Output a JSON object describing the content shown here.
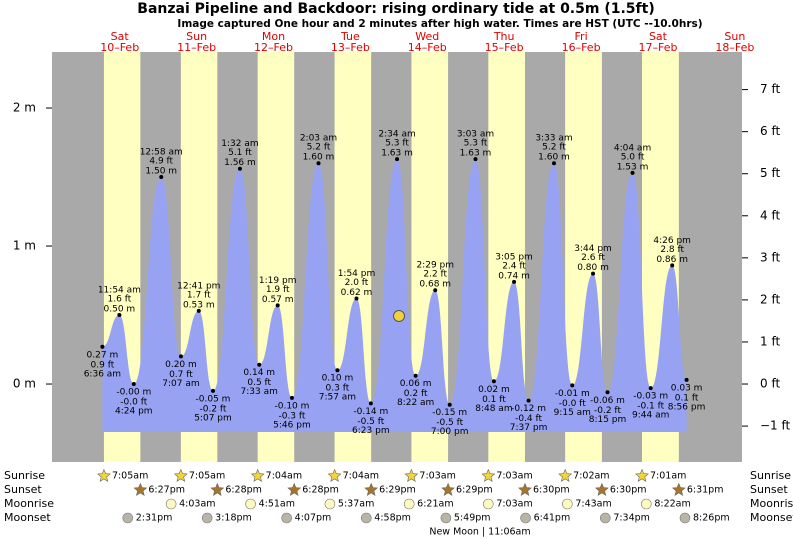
{
  "chart_data": {
    "type": "tide",
    "title": "Banzai Pipeline and Backdoor: rising  ordinary tide at 0.5m (1.5ft)",
    "subtitle": "Image captured One hour and 2 minutes after high water. Times are HST (UTC --10.0hrs)",
    "days": [
      "Sat",
      "Sun",
      "Mon",
      "Tue",
      "Wed",
      "Thu",
      "Fri",
      "Sat",
      "Sun"
    ],
    "dates": [
      "10–Feb",
      "11–Feb",
      "12–Feb",
      "13–Feb",
      "14–Feb",
      "15–Feb",
      "16–Feb",
      "17–Feb",
      "18–Feb"
    ],
    "ylim": [
      -0.565,
      2.406
    ],
    "yticks": [
      {
        "value": 0,
        "label": "0 m"
      },
      {
        "value": 1,
        "label": "1 m"
      },
      {
        "value": 2,
        "label": "2 m"
      }
    ],
    "y2lim": [
      -1.854,
      7.894
    ],
    "y2ticks": [
      {
        "value": -1,
        "label": "−1 ft"
      },
      {
        "value": 0,
        "label": "0 ft"
      },
      {
        "value": 1,
        "label": "1 ft"
      },
      {
        "value": 2,
        "label": "2 ft"
      },
      {
        "value": 3,
        "label": "3 ft"
      },
      {
        "value": 4,
        "label": "4 ft"
      },
      {
        "value": 5,
        "label": "5 ft"
      },
      {
        "value": 6,
        "label": "6 ft"
      },
      {
        "value": 7,
        "label": "7 ft"
      }
    ],
    "tides": {
      "color": "#97a3f2",
      "times": [
        "6:36 am",
        "11:54 am",
        "4:24 pm",
        "12:58 am",
        "7:07 am",
        "12:41 pm",
        "5:07 pm",
        "1:32 am",
        "7:33 am",
        "1:19 pm",
        "5:46 pm",
        "2:03 am",
        "7:57 am",
        "1:54 pm",
        "6:23 pm",
        "2:34 am",
        "8:22 am",
        "2:29 pm",
        "7:00 pm",
        "3:03 am",
        "8:48 am",
        "3:05 pm",
        "7:37 pm",
        "3:33 am",
        "9:15 am",
        "3:44 pm",
        "8:15 pm",
        "4:04 am",
        "9:44 am",
        "4:26 pm",
        "8:56 pm"
      ],
      "values": [
        0.27,
        0.5,
        0.0,
        1.5,
        0.2,
        0.53,
        -0.05,
        1.56,
        0.14,
        0.57,
        -0.1,
        1.6,
        0.1,
        0.62,
        -0.14,
        1.63,
        0.06,
        0.68,
        -0.15,
        1.63,
        0.02,
        0.74,
        -0.12,
        1.6,
        -0.01,
        0.8,
        -0.06,
        1.53,
        -0.03,
        0.86,
        0.03
      ],
      "value_labels": [
        "0.27 m",
        "0.50 m",
        "-0.00 m",
        "1.50 m",
        "0.20 m",
        "0.53 m",
        "-0.05 m",
        "1.56 m",
        "0.14 m",
        "0.57 m",
        "-0.10 m",
        "1.60 m",
        "0.10 m",
        "0.62 m",
        "-0.14 m",
        "1.63 m",
        "0.06 m",
        "0.68 m",
        "-0.15 m",
        "1.63 m",
        "0.02 m",
        "0.74 m",
        "-0.12 m",
        "1.60 m",
        "-0.01 m",
        "0.80 m",
        "-0.06 m",
        "1.53 m",
        "-0.03 m",
        "0.86 m",
        "0.03 m"
      ],
      "ft_labels": [
        "0.9 ft",
        "1.6 ft",
        "-0.0 ft",
        "4.9 ft",
        "0.7 ft",
        "1.7 ft",
        "-0.2 ft",
        "5.1 ft",
        "0.5 ft",
        "1.9 ft",
        "-0.3 ft",
        "5.2 ft",
        "0.3 ft",
        "2.0 ft",
        "-0.5 ft",
        "5.3 ft",
        "0.2 ft",
        "2.2 ft",
        "-0.5 ft",
        "5.3 ft",
        "0.1 ft",
        "2.4 ft",
        "-0.4 ft",
        "5.2 ft",
        "-0.0 ft",
        "2.6 ft",
        "-0.2 ft",
        "5.0 ft",
        "-0.1 ft",
        "2.8 ft",
        "0.1 ft"
      ]
    },
    "rows": [
      {
        "label": "Sunrise",
        "color": "#f2d43c",
        "times": [
          "7:05am",
          "7:05am",
          "7:04am",
          "7:04am",
          "7:03am",
          "7:03am",
          "7:02am",
          "7:01am"
        ]
      },
      {
        "label": "Sunset",
        "color": "#a8742a",
        "times": [
          "6:27pm",
          "6:28pm",
          "6:28pm",
          "6:29pm",
          "6:29pm",
          "6:30pm",
          "6:30pm",
          "6:31pm"
        ]
      },
      {
        "label": "Moonrise",
        "color": "#fdf7c0",
        "times": [
          null,
          "4:03am",
          "4:51am",
          "5:37am",
          "6:21am",
          "7:03am",
          "7:43am",
          "8:22am"
        ]
      },
      {
        "label": "Moonset",
        "color": "#b8b4a8",
        "times": [
          "2:31pm",
          "3:18pm",
          "4:07pm",
          "4:58pm",
          "5:49pm",
          "6:41pm",
          "7:34pm",
          "8:26pm"
        ]
      }
    ],
    "moon_note": "New Moon | 11:06am"
  }
}
